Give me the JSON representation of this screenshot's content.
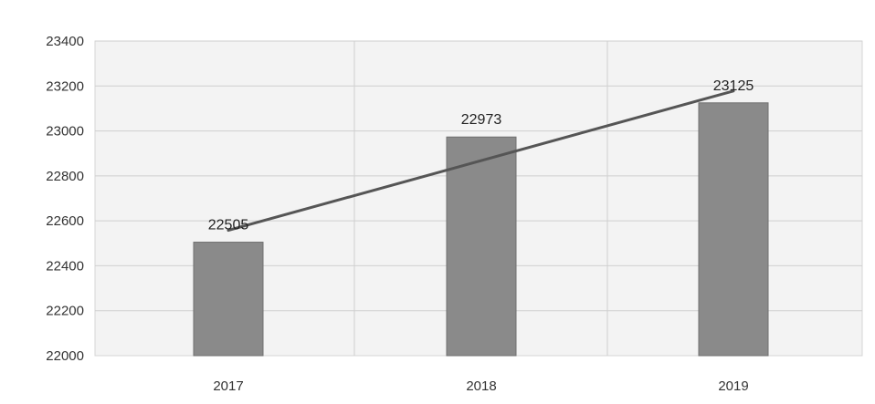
{
  "chart_data": {
    "type": "bar",
    "categories": [
      "2017",
      "2018",
      "2019"
    ],
    "values": [
      22505,
      22973,
      23125
    ],
    "data_labels": [
      "22505",
      "22973",
      "23125"
    ],
    "y_ticks": [
      "22000",
      "22200",
      "22400",
      "22600",
      "22800",
      "23000",
      "23200",
      "23400"
    ],
    "ylim": [
      22000,
      23400
    ],
    "grid": true,
    "trendline": true,
    "legend": "none",
    "colors": {
      "bar": "#8a8a8a",
      "bar_edge": "#707070",
      "trend": "#555555",
      "grid": "#cfcfcf",
      "plot_bg": "#f3f3f3"
    }
  }
}
